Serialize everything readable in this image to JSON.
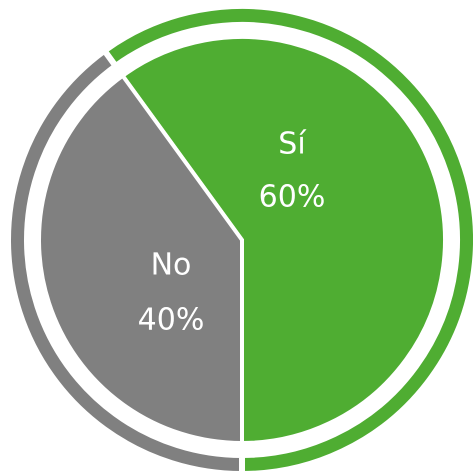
{
  "chart_data": {
    "type": "pie",
    "categories": [
      "Sí",
      "No"
    ],
    "values": [
      60,
      40
    ],
    "value_labels": [
      "60%",
      "40%"
    ],
    "colors": [
      "#4fad32",
      "#808080"
    ]
  }
}
